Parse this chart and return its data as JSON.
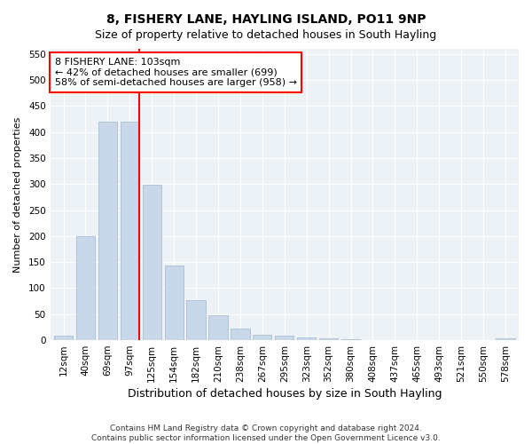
{
  "title": "8, FISHERY LANE, HAYLING ISLAND, PO11 9NP",
  "subtitle": "Size of property relative to detached houses in South Hayling",
  "xlabel": "Distribution of detached houses by size in South Hayling",
  "ylabel": "Number of detached properties",
  "categories": [
    "12sqm",
    "40sqm",
    "69sqm",
    "97sqm",
    "125sqm",
    "154sqm",
    "182sqm",
    "210sqm",
    "238sqm",
    "267sqm",
    "295sqm",
    "323sqm",
    "352sqm",
    "380sqm",
    "408sqm",
    "437sqm",
    "465sqm",
    "493sqm",
    "521sqm",
    "550sqm",
    "578sqm"
  ],
  "values": [
    8,
    200,
    420,
    420,
    298,
    143,
    77,
    48,
    23,
    11,
    8,
    6,
    3,
    1,
    0,
    0,
    0,
    0,
    0,
    0,
    3
  ],
  "bar_color": "#c8d8e8",
  "bar_edge_color": "#a0b8d0",
  "vline_pos": 3.43,
  "vline_color": "red",
  "annotation_text": "8 FISHERY LANE: 103sqm\n← 42% of detached houses are smaller (699)\n58% of semi-detached houses are larger (958) →",
  "annotation_box_color": "white",
  "annotation_box_edge": "red",
  "ylim": [
    0,
    560
  ],
  "yticks": [
    0,
    50,
    100,
    150,
    200,
    250,
    300,
    350,
    400,
    450,
    500,
    550
  ],
  "footer": "Contains HM Land Registry data © Crown copyright and database right 2024.\nContains public sector information licensed under the Open Government Licence v3.0.",
  "title_fontsize": 10,
  "subtitle_fontsize": 9,
  "xlabel_fontsize": 9,
  "ylabel_fontsize": 8,
  "tick_fontsize": 7.5,
  "annotation_fontsize": 8,
  "footer_fontsize": 6.5,
  "bg_color": "#edf2f7"
}
